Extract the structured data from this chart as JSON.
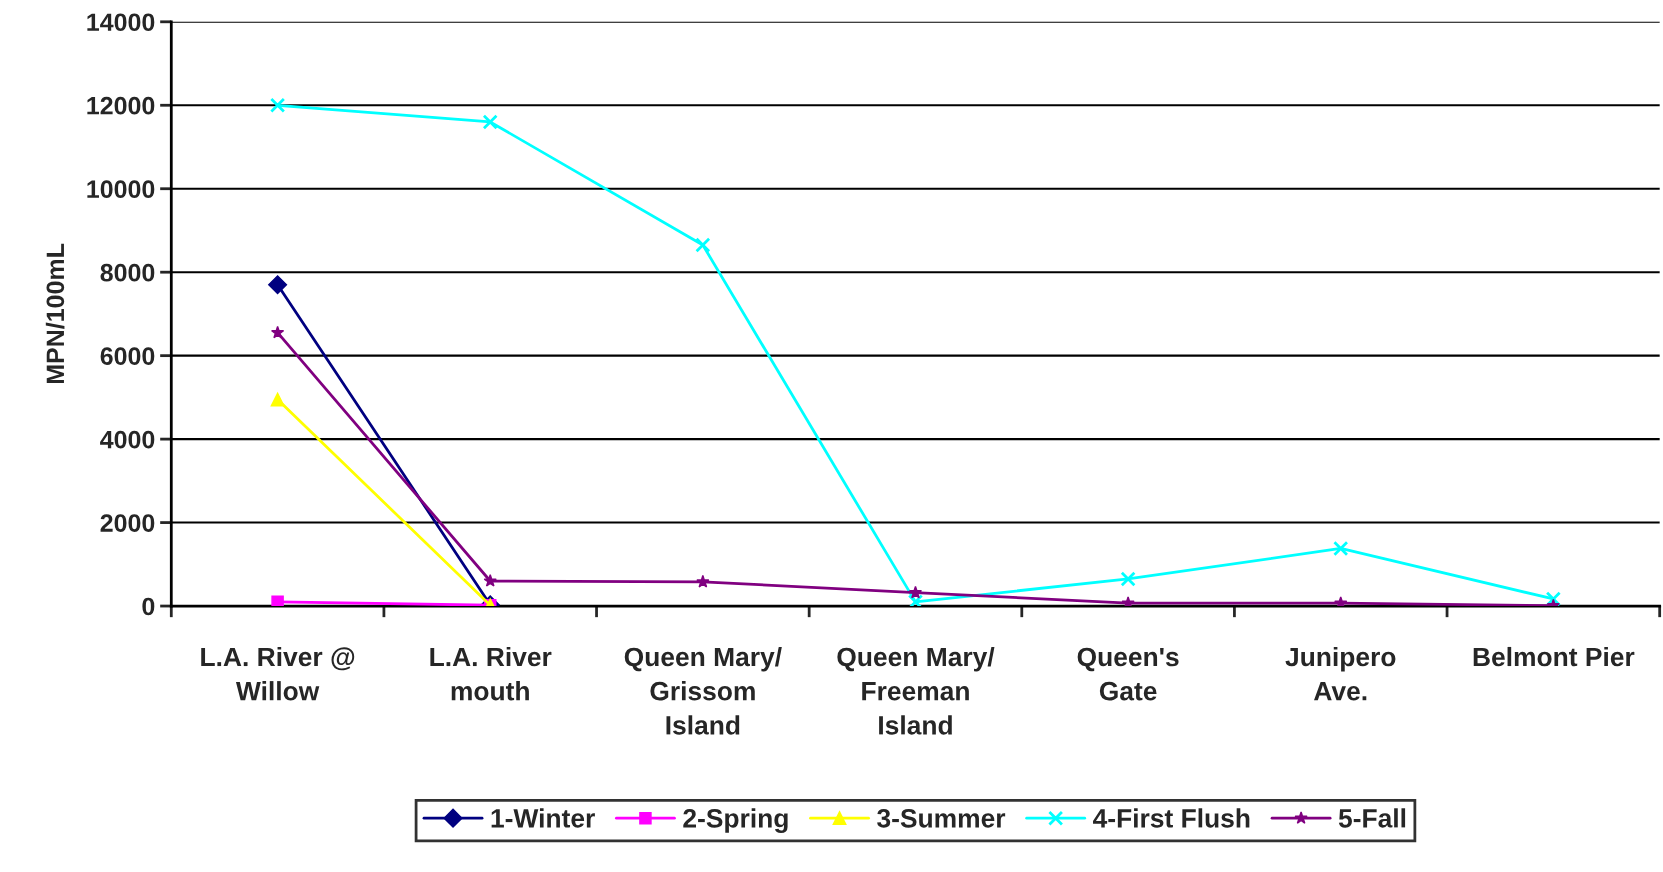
{
  "chart_data": {
    "type": "line",
    "ylabel": "MPN/100mL",
    "categories": [
      "L.A. River @\nWillow",
      "L.A. River\nmouth",
      "Queen Mary/\nGrissom\nIsland",
      "Queen Mary/\nFreeman\nIsland",
      "Queen's\nGate",
      "Junipero\nAve.",
      "Belmont Pier"
    ],
    "series": [
      {
        "name": "1-Winter",
        "color": "#000080",
        "marker": "diamond",
        "values": [
          7700,
          30,
          null,
          null,
          null,
          null,
          null
        ]
      },
      {
        "name": "2-Spring",
        "color": "#ff00ff",
        "marker": "square",
        "values": [
          100,
          20,
          null,
          null,
          null,
          null,
          null
        ]
      },
      {
        "name": "3-Summer",
        "color": "#ffff00",
        "marker": "triangle",
        "values": [
          4950,
          20,
          null,
          null,
          null,
          null,
          null
        ]
      },
      {
        "name": "4-First Flush",
        "color": "#00ffff",
        "marker": "cross",
        "values": [
          12000,
          11600,
          8650,
          100,
          650,
          1380,
          170
        ]
      },
      {
        "name": "5-Fall",
        "color": "#800080",
        "marker": "star",
        "values": [
          6550,
          600,
          580,
          320,
          70,
          70,
          10
        ]
      }
    ],
    "ylim": [
      0,
      14000
    ],
    "yticks": [
      0,
      2000,
      4000,
      6000,
      8000,
      10000,
      12000,
      14000
    ],
    "grid": "y",
    "legend": "bottom",
    "line_style": "solid"
  }
}
